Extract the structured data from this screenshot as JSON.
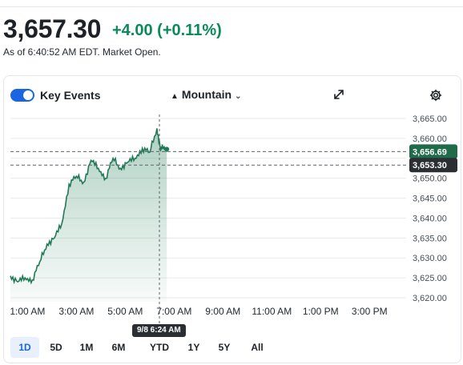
{
  "quote": {
    "price": "3,657.30",
    "change": "+4.00 (+0.11%)",
    "as_of": "As of 6:40:52 AM EDT. Market Open."
  },
  "toolbar": {
    "key_events_label": "Key Events",
    "key_events_on": true,
    "chart_type_label": "Mountain"
  },
  "colors": {
    "up": "#0b8a5a",
    "accent": "#1a66e0",
    "line": "#1f7a55"
  },
  "hover_tooltip": "9/8 6:24 AM",
  "ranges": [
    "1D",
    "5D",
    "1M",
    "6M",
    "YTD",
    "1Y",
    "5Y",
    "All"
  ],
  "active_range": "1D",
  "chart_data": {
    "type": "area",
    "title": "",
    "xlabel": "",
    "ylabel": "",
    "x_ticks": [
      "1:00 AM",
      "3:00 AM",
      "5:00 AM",
      "7:00 AM",
      "9:00 AM",
      "11:00 AM",
      "1:00 PM",
      "3:00 PM"
    ],
    "y_ticks": [
      "3,665.00",
      "3,660.00",
      "3,655.00",
      "3,650.00",
      "3,645.00",
      "3,640.00",
      "3,635.00",
      "3,630.00",
      "3,625.00",
      "3,620.00"
    ],
    "ylim": [
      3619,
      3666
    ],
    "x_range_hours": [
      0.3,
      16.5
    ],
    "grid": true,
    "reference_lines": [
      {
        "label": "3,656.69",
        "value": 3656.69,
        "style": "dashed"
      },
      {
        "label": "3,653.30",
        "value": 3653.3,
        "style": "dashed"
      }
    ],
    "series": [
      {
        "x": [
          0.3,
          0.6,
          0.9,
          1.2,
          1.5,
          1.8,
          2.1,
          2.4,
          2.7,
          3.0,
          3.3,
          3.6,
          3.9,
          4.2,
          4.5,
          4.8,
          5.1,
          5.4,
          5.7,
          6.0,
          6.3,
          6.45,
          6.55,
          6.7
        ],
        "values": [
          3625.5,
          3624.0,
          3625.0,
          3624.5,
          3629.0,
          3633.5,
          3635.0,
          3638.5,
          3648.5,
          3650.5,
          3649.0,
          3654.5,
          3652.5,
          3650.0,
          3655.0,
          3652.5,
          3654.0,
          3655.0,
          3657.5,
          3656.5,
          3662.5,
          3657.0,
          3658.0,
          3657.3
        ]
      }
    ]
  }
}
